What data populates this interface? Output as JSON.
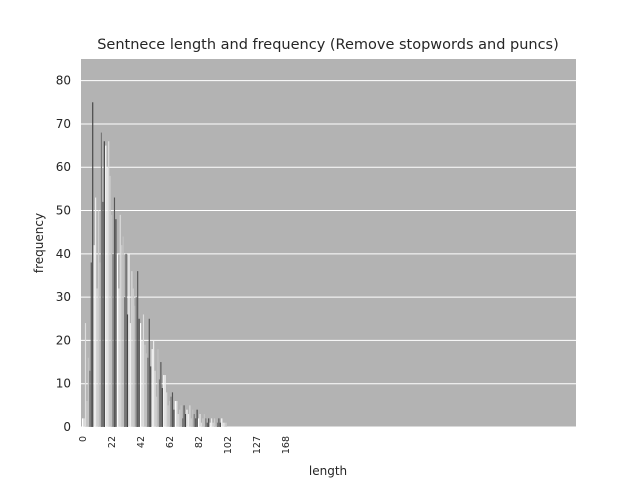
{
  "chart_data": {
    "type": "bar",
    "title": "Sentnece length and frequency (Remove stopwords and puncs)",
    "xlabel": "length",
    "ylabel": "frequency",
    "ylim": [
      0,
      85
    ],
    "yticks": [
      "0",
      "10",
      "20",
      "30",
      "40",
      "50",
      "60",
      "70",
      "80"
    ],
    "xtick_labels": [
      "0",
      "22",
      "42",
      "62",
      "82",
      "102",
      "127",
      "168"
    ],
    "xtick_slots": [
      0,
      20,
      40,
      60,
      80,
      100,
      120,
      140
    ],
    "grid": true,
    "background": "#b3b3b3",
    "bar_colors": [
      "#ffffff",
      "#eeeeee",
      "#dddddd",
      "#cccccc",
      "#c2c2c2",
      "#777777",
      "#555555",
      "#444444"
    ],
    "series": [
      {
        "values": [
          2,
          2,
          24,
          6,
          16,
          13,
          38,
          75,
          42,
          53,
          32,
          50,
          38,
          68,
          52,
          66,
          65,
          60,
          66,
          58,
          49,
          40,
          53,
          48,
          40,
          32,
          49,
          42,
          44,
          30,
          40,
          26,
          40,
          24,
          36,
          32,
          28,
          30,
          36,
          25,
          24,
          20,
          26,
          19,
          17,
          16,
          25,
          14,
          18,
          20,
          13,
          7,
          18,
          11,
          15,
          9,
          12,
          12,
          8,
          5,
          6,
          7,
          8,
          4,
          6,
          6,
          3,
          4,
          5,
          2,
          5,
          3,
          4,
          3,
          5,
          2,
          4,
          3,
          2,
          4,
          2,
          3,
          1,
          2,
          3,
          2,
          1,
          2,
          1,
          2,
          1,
          2,
          1,
          1,
          2,
          1,
          2,
          1,
          1,
          1
        ]
      }
    ]
  }
}
